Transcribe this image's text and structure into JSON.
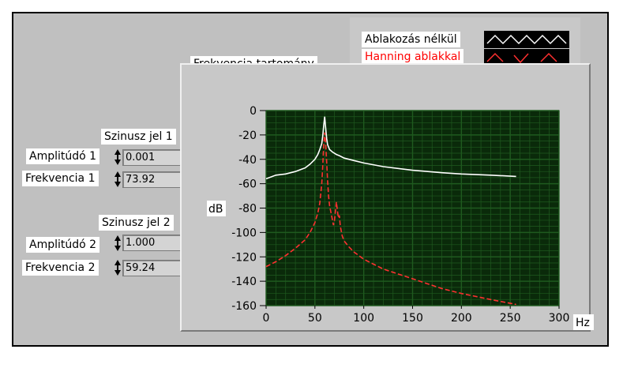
{
  "panel": {
    "graph_title": "Frekvencia tartomány",
    "legend": [
      {
        "label": "Ablakozás nélkül",
        "color": "#ffffff",
        "text_color": "#000000"
      },
      {
        "label": "Hanning ablakkal",
        "color": "#ff3030",
        "text_color": "#ff0000"
      }
    ],
    "signal1": {
      "title": "Szinusz jel 1",
      "amp_label": "Amplitúdó 1",
      "amp_value": "0.001",
      "freq_label": "Frekvencia 1",
      "freq_value": "73.92"
    },
    "signal2": {
      "title": "Szinusz jel 2",
      "amp_label": "Amplitúdó 2",
      "amp_value": "1.000",
      "freq_label": "Frekvencia 2",
      "freq_value": "59.24"
    }
  },
  "chart_data": {
    "type": "line",
    "title": "Frekvencia tartomány",
    "xlabel": "Hz",
    "ylabel": "dB",
    "xlim": [
      0,
      300
    ],
    "ylim": [
      -160,
      0
    ],
    "xticks": [
      "0",
      "50",
      "100",
      "150",
      "200",
      "250",
      "300"
    ],
    "yticks": [
      "0",
      "-20",
      "-40",
      "-60",
      "-80",
      "-100",
      "-120",
      "-140",
      "-160"
    ],
    "grid": true,
    "series": [
      {
        "name": "Ablakozás nélkül",
        "color": "#ffffff",
        "x": [
          0,
          10,
          20,
          30,
          40,
          45,
          50,
          53,
          55,
          57,
          58,
          59,
          60,
          61,
          62,
          63,
          65,
          68,
          72,
          75,
          80,
          90,
          100,
          120,
          150,
          180,
          200,
          230,
          256
        ],
        "y": [
          -56,
          -53,
          -52,
          -50,
          -47,
          -44,
          -40,
          -36,
          -32,
          -27,
          -21,
          -12,
          -5,
          -14,
          -23,
          -28,
          -32,
          -34,
          -36,
          -37,
          -39,
          -41,
          -43,
          -46,
          -49,
          -51,
          -52,
          -53,
          -54
        ]
      },
      {
        "name": "Hanning ablakkal",
        "color": "#ff3030",
        "x": [
          0,
          10,
          20,
          30,
          40,
          45,
          50,
          53,
          55,
          57,
          58,
          59,
          60,
          61,
          62,
          63,
          64,
          65,
          67,
          69,
          70,
          72,
          73,
          74,
          75,
          76,
          78,
          80,
          85,
          90,
          100,
          120,
          150,
          180,
          200,
          230,
          256
        ],
        "y": [
          -128,
          -124,
          -119,
          -113,
          -106,
          -100,
          -92,
          -84,
          -76,
          -60,
          -46,
          -28,
          -18,
          -26,
          -42,
          -58,
          -70,
          -78,
          -86,
          -94,
          -90,
          -75,
          -82,
          -88,
          -86,
          -95,
          -103,
          -107,
          -112,
          -116,
          -122,
          -130,
          -138,
          -146,
          -150,
          -155,
          -159
        ]
      }
    ]
  }
}
